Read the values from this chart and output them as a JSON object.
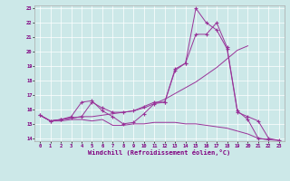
{
  "xlabel": "Windchill (Refroidissement éolien,°C)",
  "bg_color": "#cce8e8",
  "line_color": "#993399",
  "xlim": [
    -0.5,
    23.5
  ],
  "ylim": [
    13.8,
    23.2
  ],
  "yticks": [
    14,
    15,
    16,
    17,
    18,
    19,
    20,
    21,
    22,
    23
  ],
  "xticks": [
    0,
    1,
    2,
    3,
    4,
    5,
    6,
    7,
    8,
    9,
    10,
    11,
    12,
    13,
    14,
    15,
    16,
    17,
    18,
    19,
    20,
    21,
    22,
    23
  ],
  "series": [
    {
      "x": [
        0,
        1,
        2,
        3,
        4,
        5,
        6,
        7,
        8,
        9,
        10,
        11,
        12,
        13,
        14,
        15,
        16,
        17,
        18,
        19,
        20,
        21,
        22,
        23
      ],
      "y": [
        15.6,
        15.2,
        15.3,
        15.4,
        15.5,
        16.5,
        16.1,
        15.8,
        15.8,
        15.9,
        16.2,
        16.5,
        16.5,
        18.7,
        19.2,
        21.2,
        21.2,
        22.0,
        20.3,
        15.9,
        15.3,
        14.0,
        13.9,
        null
      ],
      "marker": true
    },
    {
      "x": [
        0,
        1,
        2,
        3,
        4,
        5,
        6,
        7,
        8,
        9,
        10,
        11,
        12,
        13,
        14,
        15,
        16,
        17,
        18,
        19,
        20
      ],
      "y": [
        15.6,
        15.2,
        15.3,
        15.4,
        15.5,
        15.5,
        15.6,
        15.7,
        15.8,
        15.9,
        16.1,
        16.4,
        16.7,
        17.1,
        17.5,
        17.9,
        18.4,
        18.9,
        19.5,
        20.1,
        20.4
      ],
      "marker": false
    },
    {
      "x": [
        0,
        1,
        2,
        3,
        4,
        5,
        6,
        7,
        8,
        9,
        10,
        11,
        12,
        13,
        14,
        15,
        16,
        17,
        18,
        19,
        20,
        21,
        22,
        23
      ],
      "y": [
        15.6,
        15.2,
        15.2,
        15.3,
        15.3,
        15.2,
        15.3,
        14.9,
        14.9,
        15.0,
        15.0,
        15.1,
        15.1,
        15.1,
        15.0,
        15.0,
        14.9,
        14.8,
        14.7,
        14.5,
        14.3,
        14.0,
        13.9,
        13.85
      ],
      "marker": false
    },
    {
      "x": [
        0,
        1,
        2,
        3,
        4,
        5,
        6,
        7,
        8,
        9,
        10,
        11,
        12,
        13,
        14,
        15,
        16,
        17,
        18,
        19,
        20,
        21,
        22,
        23
      ],
      "y": [
        15.6,
        15.2,
        15.3,
        15.5,
        16.5,
        16.6,
        15.9,
        15.5,
        15.0,
        15.1,
        15.7,
        16.4,
        16.5,
        18.8,
        19.2,
        23.0,
        22.0,
        21.5,
        20.2,
        15.8,
        15.5,
        15.2,
        14.0,
        13.85
      ],
      "marker": true
    }
  ]
}
